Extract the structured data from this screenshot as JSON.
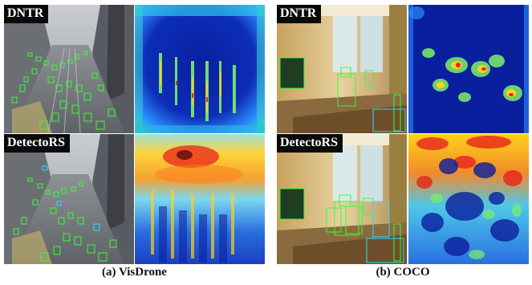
{
  "figure": {
    "groups": [
      {
        "caption": "(a) VisDrone",
        "rows": [
          {
            "label": "DNTR"
          },
          {
            "label": "DetectoRS"
          }
        ]
      },
      {
        "caption": "(b) COCO",
        "rows": [
          {
            "label": "DNTR"
          },
          {
            "label": "DetectoRS"
          }
        ]
      }
    ],
    "colors": {
      "detection_box": "#33ff33",
      "missed_box": "#22e0ff",
      "heatmap_low": "#0a1f9e",
      "heatmap_high": "#d01a10"
    }
  }
}
